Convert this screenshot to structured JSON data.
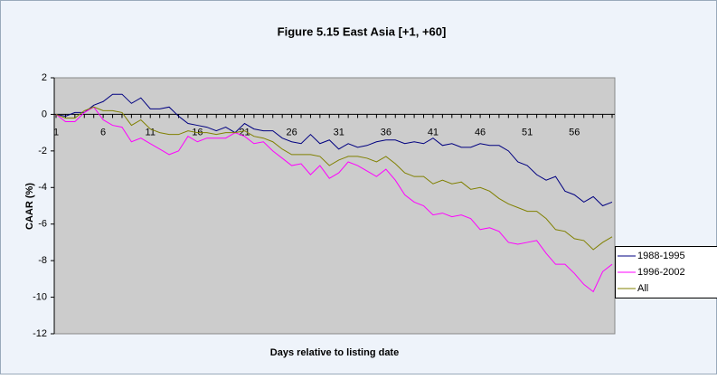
{
  "chart_data": {
    "type": "line",
    "title": "Figure 5.15 East Asia [+1, +60]",
    "x_label": "Days relative to listing date",
    "y_label": "CAAR (%)",
    "categories": [
      "1",
      null,
      null,
      null,
      null,
      "6",
      null,
      null,
      null,
      null,
      "11",
      null,
      null,
      null,
      null,
      "16",
      null,
      null,
      null,
      null,
      "21",
      null,
      null,
      null,
      null,
      "26",
      null,
      null,
      null,
      null,
      "31",
      null,
      null,
      null,
      null,
      "36",
      null,
      null,
      null,
      null,
      "41",
      null,
      null,
      null,
      null,
      "46",
      null,
      null,
      null,
      null,
      "51",
      null,
      null,
      null,
      null,
      "56",
      null,
      null,
      null,
      null
    ],
    "series": [
      {
        "name": "1988-1995",
        "color": "#000080",
        "values": [
          0,
          -0.1,
          0.1,
          0.1,
          0.5,
          0.7,
          1.1,
          1.1,
          0.6,
          0.9,
          0.3,
          0.3,
          0.4,
          -0.1,
          -0.5,
          -0.6,
          -0.7,
          -0.9,
          -0.7,
          -1.0,
          -0.5,
          -0.8,
          -0.9,
          -0.9,
          -1.3,
          -1.5,
          -1.6,
          -1.1,
          -1.6,
          -1.4,
          -1.9,
          -1.6,
          -1.8,
          -1.7,
          -1.5,
          -1.4,
          -1.4,
          -1.6,
          -1.5,
          -1.6,
          -1.3,
          -1.7,
          -1.6,
          -1.8,
          -1.8,
          -1.6,
          -1.7,
          -1.7,
          -2.0,
          -2.6,
          -2.8,
          -3.3,
          -3.6,
          -3.4,
          -4.2,
          -4.4,
          -4.8,
          -4.5,
          -5.0,
          -4.8
        ]
      },
      {
        "name": "1996-2002",
        "color": "#ff00ff",
        "values": [
          0,
          -0.4,
          -0.4,
          0.1,
          0.4,
          -0.3,
          -0.6,
          -0.7,
          -1.5,
          -1.3,
          -1.6,
          -1.9,
          -2.2,
          -2.0,
          -1.2,
          -1.5,
          -1.3,
          -1.3,
          -1.3,
          -1.0,
          -1.2,
          -1.6,
          -1.5,
          -2.0,
          -2.4,
          -2.8,
          -2.7,
          -3.3,
          -2.8,
          -3.5,
          -3.2,
          -2.6,
          -2.8,
          -3.1,
          -3.4,
          -3.0,
          -3.6,
          -4.4,
          -4.8,
          -5.0,
          -5.5,
          -5.4,
          -5.6,
          -5.5,
          -5.7,
          -6.3,
          -6.2,
          -6.4,
          -7.0,
          -7.1,
          -7.0,
          -6.9,
          -7.6,
          -8.2,
          -8.2,
          -8.7,
          -9.3,
          -9.7,
          -8.6,
          -8.2
        ]
      },
      {
        "name": "All",
        "color": "#808000",
        "values": [
          0,
          -0.2,
          -0.2,
          0.2,
          0.4,
          0.2,
          0.2,
          0.1,
          -0.6,
          -0.3,
          -0.8,
          -1.0,
          -1.1,
          -1.1,
          -0.9,
          -1.0,
          -1.0,
          -1.1,
          -1.0,
          -1.0,
          -0.9,
          -1.2,
          -1.3,
          -1.5,
          -1.9,
          -2.2,
          -2.2,
          -2.2,
          -2.3,
          -2.8,
          -2.5,
          -2.3,
          -2.3,
          -2.4,
          -2.6,
          -2.3,
          -2.7,
          -3.2,
          -3.4,
          -3.4,
          -3.8,
          -3.6,
          -3.8,
          -3.7,
          -4.1,
          -4.0,
          -4.2,
          -4.6,
          -4.9,
          -5.1,
          -5.3,
          -5.3,
          -5.7,
          -6.3,
          -6.4,
          -6.8,
          -6.9,
          -7.4,
          -7.0,
          -6.7
        ]
      }
    ],
    "ylim": [
      -12,
      2
    ],
    "yticks": [
      -12,
      -10,
      -8,
      -6,
      -4,
      -2,
      0,
      2
    ],
    "grid": false,
    "legend": "right"
  }
}
